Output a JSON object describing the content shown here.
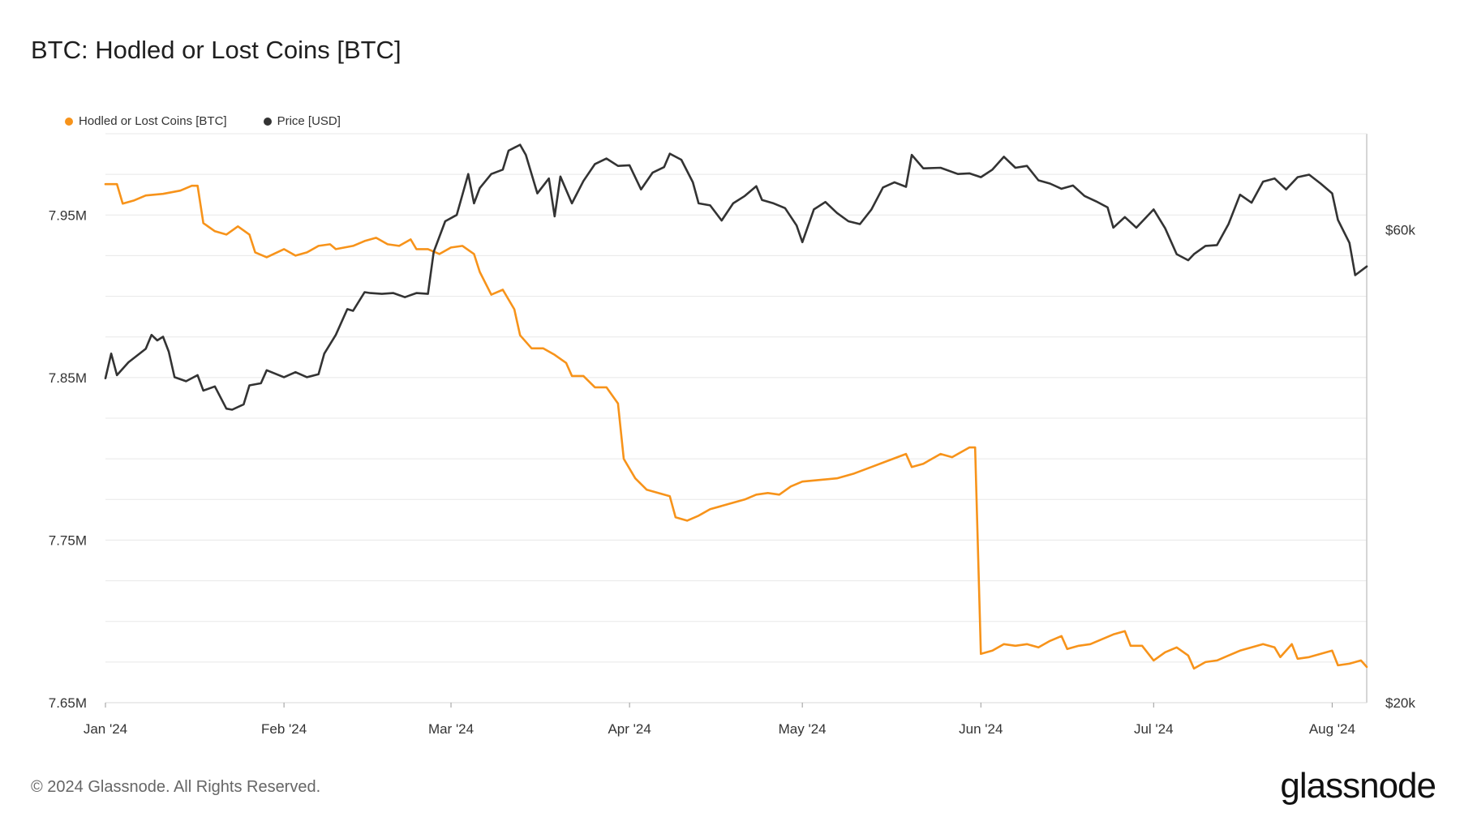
{
  "title": "BTC: Hodled or Lost Coins [BTC]",
  "footer": "© 2024 Glassnode. All Rights Reserved.",
  "brand": "glassnode",
  "legend": [
    {
      "label": "Hodled or Lost Coins [BTC]",
      "color": "#f7931a"
    },
    {
      "label": "Price [USD]",
      "color": "#333333"
    }
  ],
  "chart_data": {
    "type": "line",
    "title": "BTC: Hodled or Lost Coins [BTC]",
    "x_start": "2024-01-01",
    "x_end": "2024-08-07",
    "x_ticks": [
      {
        "date": "2024-01-01",
        "label": "Jan '24"
      },
      {
        "date": "2024-02-01",
        "label": "Feb '24"
      },
      {
        "date": "2024-03-01",
        "label": "Mar '24"
      },
      {
        "date": "2024-04-01",
        "label": "Apr '24"
      },
      {
        "date": "2024-05-01",
        "label": "May '24"
      },
      {
        "date": "2024-06-01",
        "label": "Jun '24"
      },
      {
        "date": "2024-07-01",
        "label": "Jul '24"
      },
      {
        "date": "2024-08-01",
        "label": "Aug '24"
      }
    ],
    "y_left": {
      "label": "",
      "ylim": [
        7650000,
        8000000
      ],
      "ticks": [
        {
          "value": 7650000,
          "label": "7.65M"
        },
        {
          "value": 7750000,
          "label": "7.75M"
        },
        {
          "value": 7850000,
          "label": "7.85M"
        },
        {
          "value": 7950000,
          "label": "7.95M"
        }
      ]
    },
    "y_right": {
      "label": "",
      "scale": "log",
      "ylim": [
        20000,
        75000
      ],
      "ticks": [
        {
          "value": 20000,
          "label": "$20k"
        },
        {
          "value": 60000,
          "label": "$60k"
        }
      ]
    },
    "grid": true,
    "legend_position": "top-left",
    "series": [
      {
        "name": "Hodled or Lost Coins [BTC]",
        "axis": "left",
        "color": "#f7931a",
        "points": [
          [
            "2024-01-01",
            7969000
          ],
          [
            "2024-01-03",
            7969000
          ],
          [
            "2024-01-04",
            7957000
          ],
          [
            "2024-01-06",
            7959000
          ],
          [
            "2024-01-08",
            7962000
          ],
          [
            "2024-01-11",
            7963000
          ],
          [
            "2024-01-14",
            7965000
          ],
          [
            "2024-01-16",
            7968000
          ],
          [
            "2024-01-17",
            7968000
          ],
          [
            "2024-01-18",
            7945000
          ],
          [
            "2024-01-20",
            7940000
          ],
          [
            "2024-01-22",
            7938000
          ],
          [
            "2024-01-24",
            7943000
          ],
          [
            "2024-01-26",
            7938000
          ],
          [
            "2024-01-27",
            7927000
          ],
          [
            "2024-01-29",
            7924000
          ],
          [
            "2024-02-01",
            7929000
          ],
          [
            "2024-02-03",
            7925000
          ],
          [
            "2024-02-05",
            7927000
          ],
          [
            "2024-02-07",
            7931000
          ],
          [
            "2024-02-09",
            7932000
          ],
          [
            "2024-02-10",
            7929000
          ],
          [
            "2024-02-13",
            7931000
          ],
          [
            "2024-02-15",
            7934000
          ],
          [
            "2024-02-17",
            7936000
          ],
          [
            "2024-02-19",
            7932000
          ],
          [
            "2024-02-21",
            7931000
          ],
          [
            "2024-02-23",
            7935000
          ],
          [
            "2024-02-24",
            7929000
          ],
          [
            "2024-02-26",
            7929000
          ],
          [
            "2024-02-28",
            7926000
          ],
          [
            "2024-03-01",
            7930000
          ],
          [
            "2024-03-03",
            7931000
          ],
          [
            "2024-03-05",
            7926000
          ],
          [
            "2024-03-06",
            7915000
          ],
          [
            "2024-03-08",
            7901000
          ],
          [
            "2024-03-10",
            7904000
          ],
          [
            "2024-03-12",
            7892000
          ],
          [
            "2024-03-13",
            7876000
          ],
          [
            "2024-03-15",
            7868000
          ],
          [
            "2024-03-17",
            7868000
          ],
          [
            "2024-03-19",
            7864000
          ],
          [
            "2024-03-21",
            7859000
          ],
          [
            "2024-03-22",
            7851000
          ],
          [
            "2024-03-24",
            7851000
          ],
          [
            "2024-03-26",
            7844000
          ],
          [
            "2024-03-28",
            7844000
          ],
          [
            "2024-03-30",
            7834000
          ],
          [
            "2024-03-31",
            7800000
          ],
          [
            "2024-04-02",
            7788000
          ],
          [
            "2024-04-04",
            7781000
          ],
          [
            "2024-04-06",
            7779000
          ],
          [
            "2024-04-08",
            7777000
          ],
          [
            "2024-04-09",
            7764000
          ],
          [
            "2024-04-11",
            7762000
          ],
          [
            "2024-04-13",
            7765000
          ],
          [
            "2024-04-15",
            7769000
          ],
          [
            "2024-04-17",
            7771000
          ],
          [
            "2024-04-19",
            7773000
          ],
          [
            "2024-04-21",
            7775000
          ],
          [
            "2024-04-23",
            7778000
          ],
          [
            "2024-04-25",
            7779000
          ],
          [
            "2024-04-27",
            7778000
          ],
          [
            "2024-04-29",
            7783000
          ],
          [
            "2024-05-01",
            7786000
          ],
          [
            "2024-05-04",
            7787000
          ],
          [
            "2024-05-07",
            7788000
          ],
          [
            "2024-05-10",
            7791000
          ],
          [
            "2024-05-13",
            7795000
          ],
          [
            "2024-05-16",
            7799000
          ],
          [
            "2024-05-19",
            7803000
          ],
          [
            "2024-05-20",
            7795000
          ],
          [
            "2024-05-22",
            7797000
          ],
          [
            "2024-05-25",
            7803000
          ],
          [
            "2024-05-27",
            7801000
          ],
          [
            "2024-05-30",
            7807000
          ],
          [
            "2024-05-31",
            7807000
          ],
          [
            "2024-06-01",
            7680000
          ],
          [
            "2024-06-03",
            7682000
          ],
          [
            "2024-06-05",
            7686000
          ],
          [
            "2024-06-07",
            7685000
          ],
          [
            "2024-06-09",
            7686000
          ],
          [
            "2024-06-11",
            7684000
          ],
          [
            "2024-06-13",
            7688000
          ],
          [
            "2024-06-15",
            7691000
          ],
          [
            "2024-06-16",
            7683000
          ],
          [
            "2024-06-18",
            7685000
          ],
          [
            "2024-06-20",
            7686000
          ],
          [
            "2024-06-22",
            7689000
          ],
          [
            "2024-06-24",
            7692000
          ],
          [
            "2024-06-26",
            7694000
          ],
          [
            "2024-06-27",
            7685000
          ],
          [
            "2024-06-29",
            7685000
          ],
          [
            "2024-07-01",
            7676000
          ],
          [
            "2024-07-03",
            7681000
          ],
          [
            "2024-07-05",
            7684000
          ],
          [
            "2024-07-07",
            7679000
          ],
          [
            "2024-07-08",
            7671000
          ],
          [
            "2024-07-10",
            7675000
          ],
          [
            "2024-07-12",
            7676000
          ],
          [
            "2024-07-14",
            7679000
          ],
          [
            "2024-07-16",
            7682000
          ],
          [
            "2024-07-18",
            7684000
          ],
          [
            "2024-07-20",
            7686000
          ],
          [
            "2024-07-22",
            7684000
          ],
          [
            "2024-07-23",
            7678000
          ],
          [
            "2024-07-25",
            7686000
          ],
          [
            "2024-07-26",
            7677000
          ],
          [
            "2024-07-28",
            7678000
          ],
          [
            "2024-07-30",
            7680000
          ],
          [
            "2024-08-01",
            7682000
          ],
          [
            "2024-08-02",
            7673000
          ],
          [
            "2024-08-04",
            7674000
          ],
          [
            "2024-08-06",
            7676000
          ],
          [
            "2024-08-07",
            7672000
          ]
        ]
      },
      {
        "name": "Price [USD]",
        "axis": "right",
        "color": "#333333",
        "points": [
          [
            "2024-01-01",
            42500
          ],
          [
            "2024-01-02",
            45000
          ],
          [
            "2024-01-03",
            42800
          ],
          [
            "2024-01-05",
            44100
          ],
          [
            "2024-01-08",
            45500
          ],
          [
            "2024-01-09",
            47000
          ],
          [
            "2024-01-10",
            46400
          ],
          [
            "2024-01-11",
            46800
          ],
          [
            "2024-01-12",
            45200
          ],
          [
            "2024-01-13",
            42600
          ],
          [
            "2024-01-15",
            42200
          ],
          [
            "2024-01-17",
            42800
          ],
          [
            "2024-01-18",
            41300
          ],
          [
            "2024-01-20",
            41700
          ],
          [
            "2024-01-22",
            39600
          ],
          [
            "2024-01-23",
            39500
          ],
          [
            "2024-01-25",
            40000
          ],
          [
            "2024-01-26",
            41800
          ],
          [
            "2024-01-28",
            42000
          ],
          [
            "2024-01-29",
            43300
          ],
          [
            "2024-02-01",
            42600
          ],
          [
            "2024-02-03",
            43100
          ],
          [
            "2024-02-05",
            42600
          ],
          [
            "2024-02-07",
            42900
          ],
          [
            "2024-02-08",
            45000
          ],
          [
            "2024-02-10",
            47000
          ],
          [
            "2024-02-12",
            49900
          ],
          [
            "2024-02-13",
            49700
          ],
          [
            "2024-02-15",
            51900
          ],
          [
            "2024-02-16",
            51800
          ],
          [
            "2024-02-18",
            51700
          ],
          [
            "2024-02-20",
            51800
          ],
          [
            "2024-02-22",
            51300
          ],
          [
            "2024-02-24",
            51800
          ],
          [
            "2024-02-26",
            51700
          ],
          [
            "2024-02-27",
            57000
          ],
          [
            "2024-02-29",
            61200
          ],
          [
            "2024-03-02",
            62100
          ],
          [
            "2024-03-04",
            68300
          ],
          [
            "2024-03-05",
            63800
          ],
          [
            "2024-03-06",
            66100
          ],
          [
            "2024-03-08",
            68300
          ],
          [
            "2024-03-10",
            69000
          ],
          [
            "2024-03-11",
            72100
          ],
          [
            "2024-03-13",
            73100
          ],
          [
            "2024-03-14",
            71400
          ],
          [
            "2024-03-16",
            65300
          ],
          [
            "2024-03-18",
            67600
          ],
          [
            "2024-03-19",
            61900
          ],
          [
            "2024-03-20",
            67900
          ],
          [
            "2024-03-22",
            63800
          ],
          [
            "2024-03-24",
            67200
          ],
          [
            "2024-03-26",
            69900
          ],
          [
            "2024-03-28",
            70800
          ],
          [
            "2024-03-30",
            69600
          ],
          [
            "2024-04-01",
            69700
          ],
          [
            "2024-04-03",
            65900
          ],
          [
            "2024-04-05",
            68500
          ],
          [
            "2024-04-07",
            69400
          ],
          [
            "2024-04-08",
            71600
          ],
          [
            "2024-04-10",
            70600
          ],
          [
            "2024-04-12",
            67000
          ],
          [
            "2024-04-13",
            63800
          ],
          [
            "2024-04-15",
            63500
          ],
          [
            "2024-04-17",
            61300
          ],
          [
            "2024-04-19",
            63800
          ],
          [
            "2024-04-21",
            64900
          ],
          [
            "2024-04-23",
            66400
          ],
          [
            "2024-04-24",
            64300
          ],
          [
            "2024-04-26",
            63800
          ],
          [
            "2024-04-28",
            63100
          ],
          [
            "2024-04-30",
            60600
          ],
          [
            "2024-05-01",
            58300
          ],
          [
            "2024-05-03",
            62900
          ],
          [
            "2024-05-05",
            64000
          ],
          [
            "2024-05-07",
            62400
          ],
          [
            "2024-05-09",
            61200
          ],
          [
            "2024-05-11",
            60800
          ],
          [
            "2024-05-13",
            62900
          ],
          [
            "2024-05-15",
            66200
          ],
          [
            "2024-05-17",
            67000
          ],
          [
            "2024-05-19",
            66300
          ],
          [
            "2024-05-20",
            71400
          ],
          [
            "2024-05-22",
            69200
          ],
          [
            "2024-05-25",
            69300
          ],
          [
            "2024-05-28",
            68300
          ],
          [
            "2024-05-30",
            68400
          ],
          [
            "2024-06-01",
            67800
          ],
          [
            "2024-06-03",
            69000
          ],
          [
            "2024-06-05",
            71100
          ],
          [
            "2024-06-07",
            69300
          ],
          [
            "2024-06-09",
            69600
          ],
          [
            "2024-06-11",
            67300
          ],
          [
            "2024-06-13",
            66800
          ],
          [
            "2024-06-15",
            66000
          ],
          [
            "2024-06-17",
            66500
          ],
          [
            "2024-06-19",
            64900
          ],
          [
            "2024-06-21",
            64100
          ],
          [
            "2024-06-23",
            63200
          ],
          [
            "2024-06-24",
            60300
          ],
          [
            "2024-06-26",
            61800
          ],
          [
            "2024-06-28",
            60300
          ],
          [
            "2024-07-01",
            62900
          ],
          [
            "2024-07-03",
            60200
          ],
          [
            "2024-07-05",
            56700
          ],
          [
            "2024-07-07",
            55900
          ],
          [
            "2024-07-08",
            56700
          ],
          [
            "2024-07-10",
            57800
          ],
          [
            "2024-07-12",
            57900
          ],
          [
            "2024-07-14",
            60800
          ],
          [
            "2024-07-16",
            65100
          ],
          [
            "2024-07-18",
            63900
          ],
          [
            "2024-07-20",
            67100
          ],
          [
            "2024-07-22",
            67600
          ],
          [
            "2024-07-24",
            65900
          ],
          [
            "2024-07-26",
            67800
          ],
          [
            "2024-07-28",
            68200
          ],
          [
            "2024-07-30",
            66800
          ],
          [
            "2024-08-01",
            65300
          ],
          [
            "2024-08-02",
            61400
          ],
          [
            "2024-08-04",
            58200
          ],
          [
            "2024-08-05",
            54000
          ],
          [
            "2024-08-07",
            55100
          ]
        ]
      }
    ]
  }
}
